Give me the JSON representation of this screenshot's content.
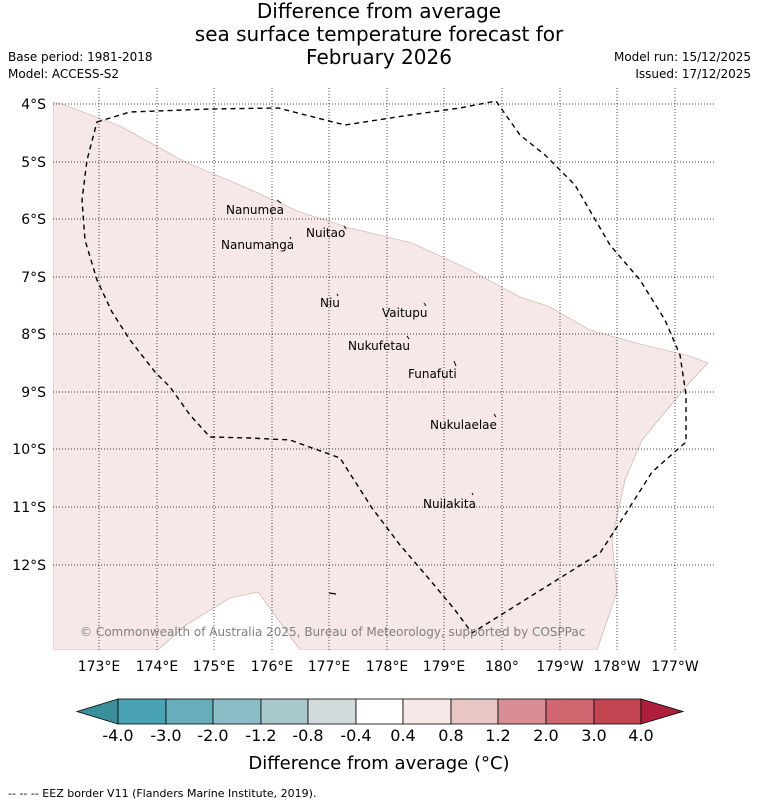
{
  "title": {
    "line1": "Difference from average",
    "line2": "sea surface temperature forecast for",
    "line3": "February 2026"
  },
  "meta_left": {
    "base_period": "Base period: 1981-2018",
    "model": "Model: ACCESS-S2"
  },
  "meta_right": {
    "model_run": "Model run: 15/12/2025",
    "issued": "Issued: 17/12/2025"
  },
  "lat_labels": [
    "4°S",
    "5°S",
    "6°S",
    "7°S",
    "8°S",
    "9°S",
    "10°S",
    "11°S",
    "12°S"
  ],
  "lon_labels": [
    "173°E",
    "174°E",
    "175°E",
    "176°E",
    "177°E",
    "178°E",
    "179°E",
    "180°",
    "179°W",
    "178°W",
    "177°W"
  ],
  "places": [
    {
      "name": "Nanumea"
    },
    {
      "name": "Nuitao"
    },
    {
      "name": "Nanumanga"
    },
    {
      "name": "Niu"
    },
    {
      "name": "Vaitupu"
    },
    {
      "name": "Nukufetau"
    },
    {
      "name": "Funafuti"
    },
    {
      "name": "Nukulaelae"
    },
    {
      "name": "Nuilakita"
    }
  ],
  "copyright": "© Commonwealth of Australia 2025, Bureau of Meteorology, supported by COSPPac",
  "colorbar": {
    "title": "Difference from average (°C)",
    "ticks": [
      "-4.0",
      "-3.0",
      "-2.0",
      "-1.2",
      "-0.8",
      "-0.4",
      "0.4",
      "0.8",
      "1.2",
      "2.0",
      "3.0",
      "4.0"
    ],
    "colors": [
      "#3a8f9b",
      "#4aa3b4",
      "#68aeba",
      "#8abdc6",
      "#a9c8cc",
      "#d3dadc",
      "#ffffff",
      "#f5e8e6",
      "#e8c6c2",
      "#d88e94",
      "#cf6670",
      "#c44552",
      "#ad1f3a"
    ]
  },
  "anomaly_fill_color": "#f5e8e6",
  "footnote": "-- -- -- EEZ border V11 (Flanders Marine Institute, 2019)."
}
